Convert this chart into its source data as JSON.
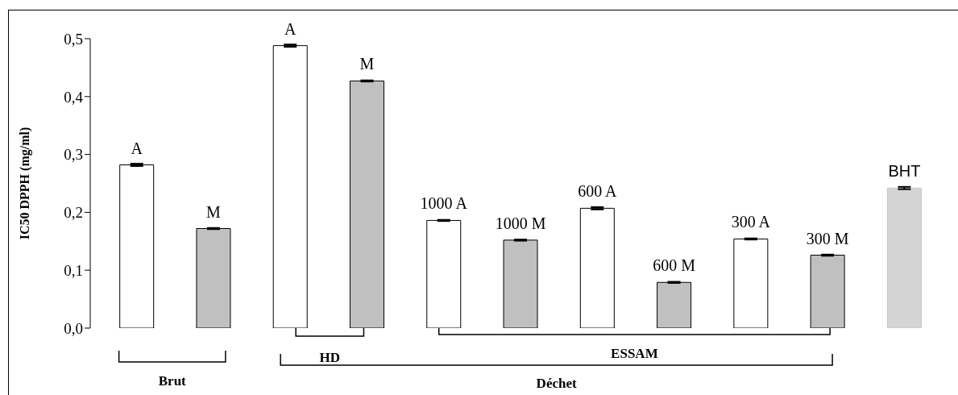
{
  "chart_data": {
    "type": "bar",
    "ylabel": "IC50 DPPH (mg/ml)",
    "categories": [
      "A",
      "M",
      "A",
      "M",
      "1000 A",
      "1000 M",
      "600 A",
      "600 M",
      "300 A",
      "300 M",
      "BHT"
    ],
    "values": [
      0.282,
      0.172,
      0.488,
      0.427,
      0.186,
      0.152,
      0.207,
      0.079,
      0.154,
      0.126,
      0.242
    ],
    "errors": [
      0.002,
      0.001,
      0.002,
      0.001,
      0.001,
      0.001,
      0.002,
      0.001,
      0.001,
      0.001,
      0.002
    ],
    "colors": [
      "#ffffff",
      "#c0c0c0",
      "#ffffff",
      "#c0c0c0",
      "#ffffff",
      "#c0c0c0",
      "#ffffff",
      "#c0c0c0",
      "#ffffff",
      "#c0c0c0",
      "#d4d4d4"
    ],
    "ylim": [
      0,
      0.5
    ],
    "yticks": [
      {
        "value": 0,
        "label": "0,0"
      },
      {
        "value": 0.1,
        "label": "0,1"
      },
      {
        "value": 0.2,
        "label": "0,2"
      },
      {
        "value": 0.3,
        "label": "0,3"
      },
      {
        "value": 0.4,
        "label": "0,4"
      },
      {
        "value": 0.5,
        "label": "0,5"
      }
    ],
    "grid": false,
    "legend": false,
    "annotations": [
      "Brut",
      "HD",
      "ESSAM",
      "Déchet"
    ]
  }
}
